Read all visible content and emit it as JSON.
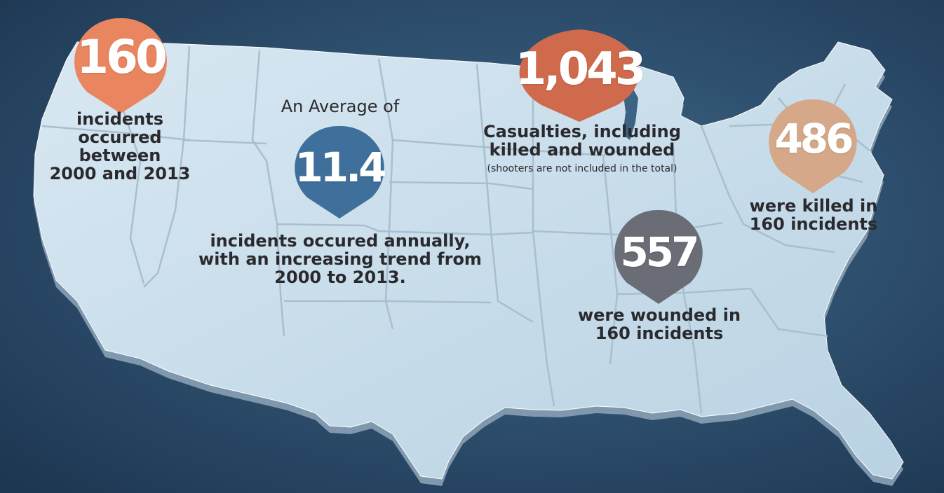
{
  "colors": {
    "background": "#2f5170",
    "land": "#c6dcea",
    "land_edge": "#7f98ad",
    "state_border": "#a9bfce",
    "text": "#2a2a2e",
    "pin_incidents": "#e98660",
    "pin_average": "#3f6f9b",
    "pin_casualties": "#cf6a4d",
    "pin_killed": "#d5a889",
    "pin_wounded": "#6b6d76"
  },
  "stats": {
    "incidents": {
      "value": "160",
      "lines": [
        "incidents",
        "occurred",
        "between",
        "2000 and 2013"
      ]
    },
    "average": {
      "heading": "An Average of",
      "value": "11.4",
      "lines": [
        "incidents occured annually,",
        "with an increasing trend from",
        "2000 to 2013."
      ]
    },
    "casualties": {
      "value": "1,043",
      "lines": [
        "Casualties, including",
        "killed and wounded"
      ],
      "note": "(shooters are not included in the total)"
    },
    "killed": {
      "value": "486",
      "lines": [
        "were killed in",
        "160 incidents"
      ]
    },
    "wounded": {
      "value": "557",
      "lines": [
        "were wounded in",
        "160 incidents"
      ]
    }
  }
}
